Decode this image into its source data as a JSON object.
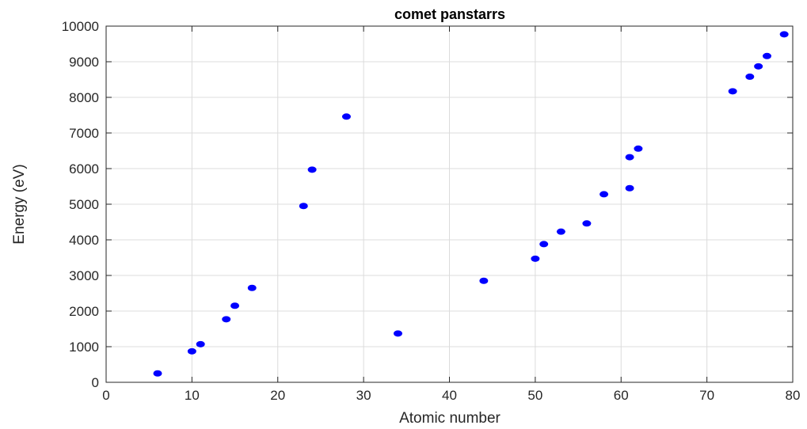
{
  "chart_data": {
    "type": "scatter",
    "title": "comet panstarrs",
    "xlabel": "Atomic number",
    "ylabel": "Energy (eV)",
    "xlim": [
      0,
      80
    ],
    "ylim": [
      0,
      10000
    ],
    "xticks": [
      0,
      10,
      20,
      30,
      40,
      50,
      60,
      70,
      80
    ],
    "yticks": [
      0,
      1000,
      2000,
      3000,
      4000,
      5000,
      6000,
      7000,
      8000,
      9000,
      10000
    ],
    "grid": true,
    "marker_color": "#0000ff",
    "points": [
      {
        "x": 6,
        "y": 250
      },
      {
        "x": 10,
        "y": 870
      },
      {
        "x": 11,
        "y": 1070
      },
      {
        "x": 14,
        "y": 1770
      },
      {
        "x": 15,
        "y": 2150
      },
      {
        "x": 17,
        "y": 2650
      },
      {
        "x": 23,
        "y": 4950
      },
      {
        "x": 24,
        "y": 5970
      },
      {
        "x": 28,
        "y": 7460
      },
      {
        "x": 34,
        "y": 1370
      },
      {
        "x": 44,
        "y": 2850
      },
      {
        "x": 50,
        "y": 3470
      },
      {
        "x": 51,
        "y": 3880
      },
      {
        "x": 53,
        "y": 4230
      },
      {
        "x": 56,
        "y": 4460
      },
      {
        "x": 58,
        "y": 5280
      },
      {
        "x": 61,
        "y": 6320
      },
      {
        "x": 61,
        "y": 5450
      },
      {
        "x": 62,
        "y": 6560
      },
      {
        "x": 73,
        "y": 8170
      },
      {
        "x": 75,
        "y": 8580
      },
      {
        "x": 76,
        "y": 8870
      },
      {
        "x": 77,
        "y": 9160
      },
      {
        "x": 79,
        "y": 9770
      }
    ]
  }
}
